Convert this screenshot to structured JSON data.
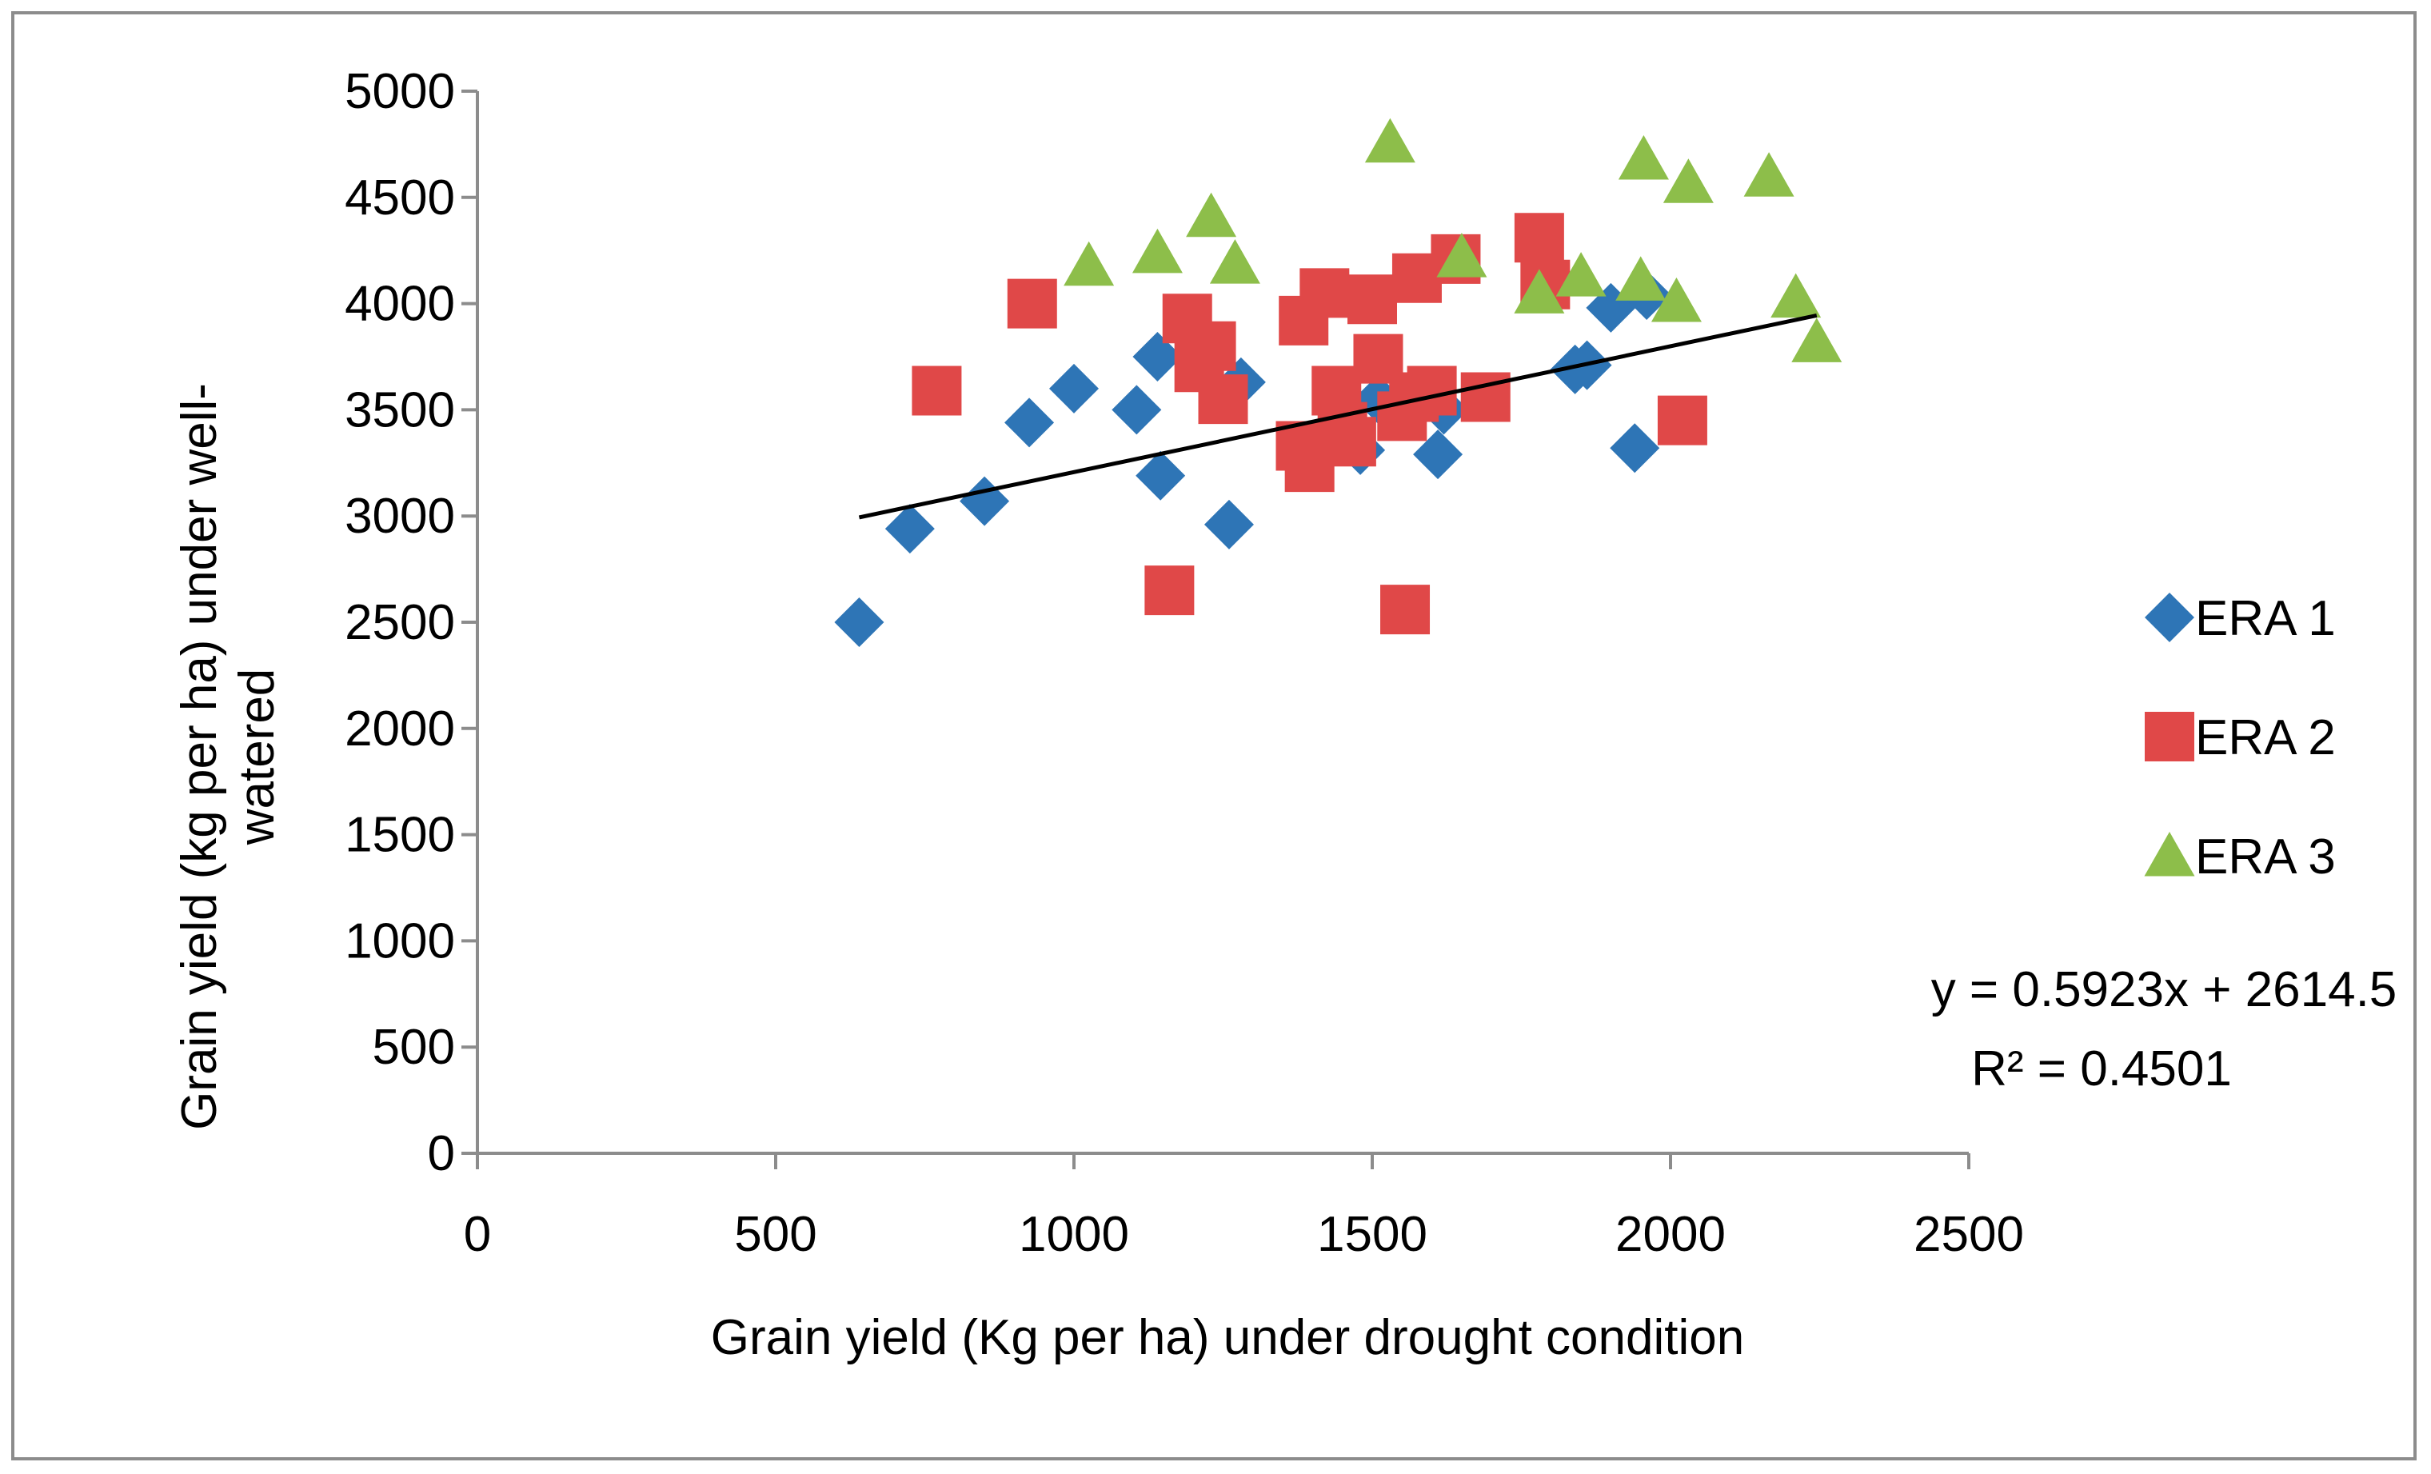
{
  "chart_data": {
    "type": "scatter",
    "title": "",
    "xlabel": "Grain yield (Kg per ha) under drought condition",
    "ylabel_lines": [
      "Grain yield (kg per ha) under well-",
      "watered"
    ],
    "xlim": [
      0,
      2500
    ],
    "ylim": [
      0,
      5000
    ],
    "xticks": [
      0,
      500,
      1000,
      1500,
      2000,
      2500
    ],
    "yticks": [
      0,
      500,
      1000,
      1500,
      2000,
      2500,
      3000,
      3500,
      4000,
      4500,
      5000
    ],
    "grid": false,
    "legend_position": "right",
    "series": [
      {
        "name": "ERA 1",
        "marker": "diamond",
        "color": "#2e75b6",
        "points": [
          [
            640,
            2500
          ],
          [
            725,
            2940
          ],
          [
            850,
            3070
          ],
          [
            925,
            3440
          ],
          [
            1000,
            3600
          ],
          [
            1105,
            3500
          ],
          [
            1140,
            3750
          ],
          [
            1145,
            3190
          ],
          [
            1260,
            2960
          ],
          [
            1280,
            3630
          ],
          [
            1480,
            3310
          ],
          [
            1510,
            3550
          ],
          [
            1610,
            3290
          ],
          [
            1620,
            3500
          ],
          [
            1840,
            3690
          ],
          [
            1860,
            3710
          ],
          [
            1900,
            3980
          ],
          [
            1940,
            3320
          ],
          [
            1960,
            4040
          ]
        ]
      },
      {
        "name": "ERA 2",
        "marker": "square",
        "color": "#e04848",
        "points": [
          [
            770,
            3590
          ],
          [
            930,
            4000
          ],
          [
            1160,
            2650
          ],
          [
            1190,
            3930
          ],
          [
            1210,
            3700
          ],
          [
            1230,
            3800
          ],
          [
            1250,
            3550
          ],
          [
            1380,
            3330
          ],
          [
            1385,
            3920
          ],
          [
            1395,
            3230
          ],
          [
            1420,
            4050
          ],
          [
            1440,
            3590
          ],
          [
            1450,
            3420
          ],
          [
            1465,
            3350
          ],
          [
            1500,
            4020
          ],
          [
            1510,
            3740
          ],
          [
            1550,
            3470
          ],
          [
            1555,
            2560
          ],
          [
            1570,
            3560
          ],
          [
            1575,
            4120
          ],
          [
            1600,
            3590
          ],
          [
            1640,
            4210
          ],
          [
            1690,
            3560
          ],
          [
            1780,
            4310
          ],
          [
            1790,
            4090
          ],
          [
            2020,
            3450
          ]
        ]
      },
      {
        "name": "ERA 3",
        "marker": "triangle",
        "color": "#8dbe4a",
        "points": [
          [
            1025,
            4180
          ],
          [
            1140,
            4240
          ],
          [
            1230,
            4410
          ],
          [
            1270,
            4190
          ],
          [
            1530,
            4760
          ],
          [
            1650,
            4220
          ],
          [
            1780,
            4050
          ],
          [
            1850,
            4130
          ],
          [
            1950,
            4110
          ],
          [
            1955,
            4680
          ],
          [
            2010,
            4010
          ],
          [
            2030,
            4570
          ],
          [
            2165,
            4600
          ],
          [
            2210,
            4030
          ],
          [
            2245,
            3820
          ]
        ]
      }
    ],
    "trendline": {
      "slope": 0.5923,
      "intercept": 2614.5,
      "x_range": [
        640,
        2245
      ],
      "color": "#000000",
      "equation": "y = 0.5923x + 2614.5",
      "r_squared": "R² = 0.4501"
    }
  }
}
